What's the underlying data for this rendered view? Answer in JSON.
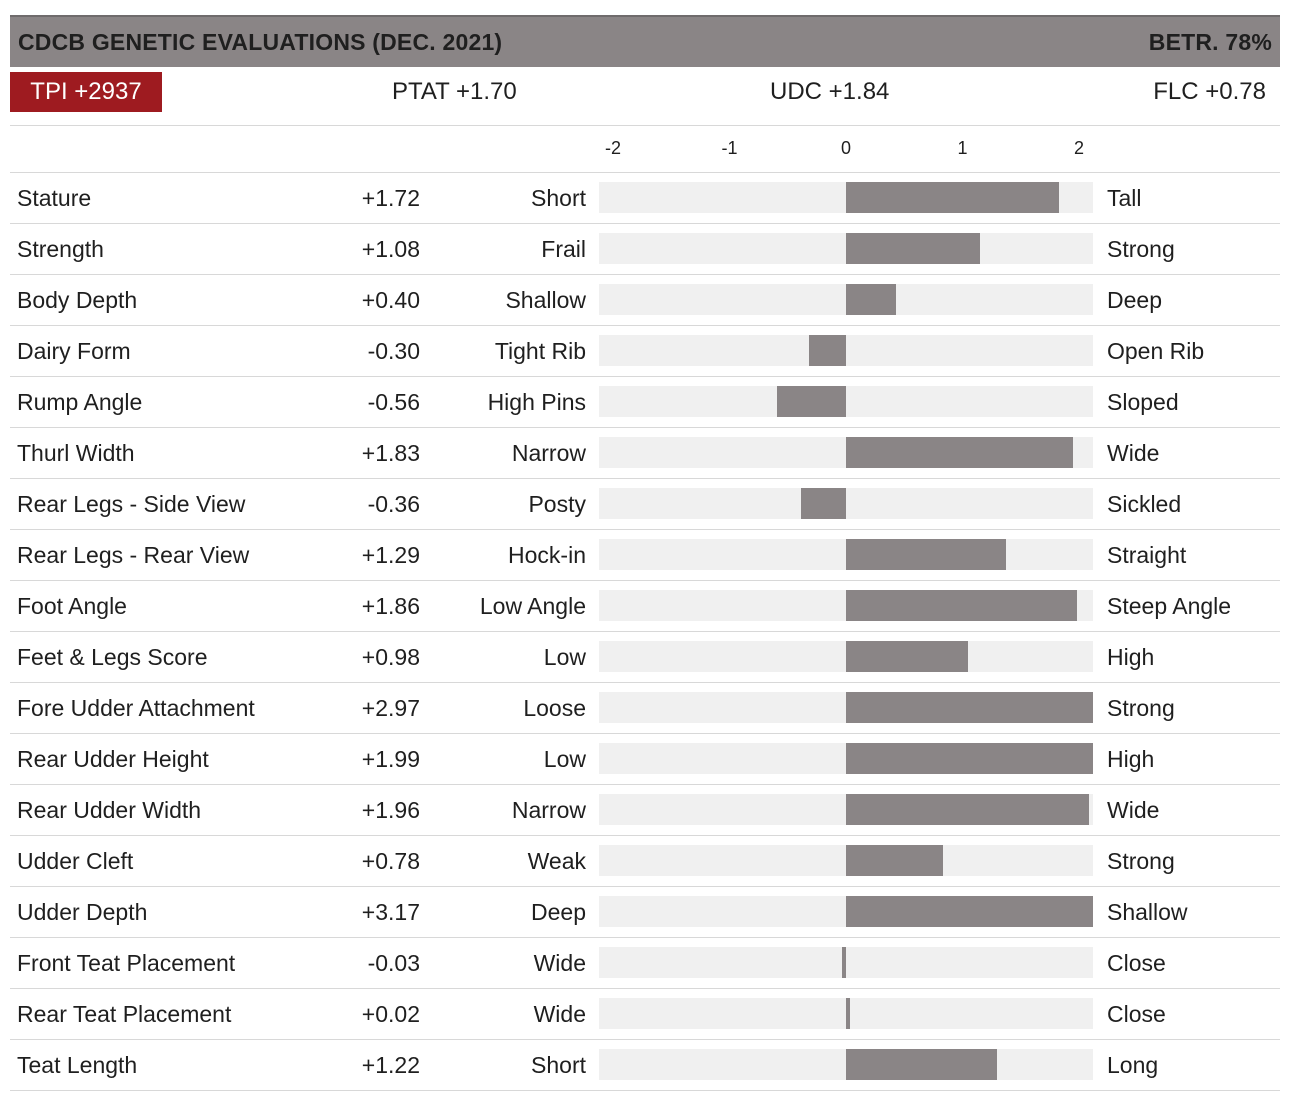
{
  "header": {
    "title": "CDCB GENETIC EVALUATIONS (DEC. 2021)",
    "reliability": "BETR. 78%"
  },
  "summary": {
    "tpi": "TPI +2937",
    "ptat": "PTAT +1.70",
    "udc": "UDC +1.84",
    "flc": "FLC +0.78"
  },
  "colors": {
    "bar": "#8a8586",
    "track": "#f0f0f0",
    "tpi_badge": "#9e1b20",
    "header_bg": "#8a8586"
  },
  "chart_data": {
    "type": "bar",
    "orientation": "horizontal",
    "xlim": [
      -2,
      2
    ],
    "ticks": [
      "-2",
      "-1",
      "0",
      "1",
      "2"
    ],
    "rows": [
      {
        "trait": "Stature",
        "value": 1.72,
        "label": "+1.72",
        "low": "Short",
        "high": "Tall"
      },
      {
        "trait": "Strength",
        "value": 1.08,
        "label": "+1.08",
        "low": "Frail",
        "high": "Strong"
      },
      {
        "trait": "Body Depth",
        "value": 0.4,
        "label": "+0.40",
        "low": "Shallow",
        "high": "Deep"
      },
      {
        "trait": "Dairy Form",
        "value": -0.3,
        "label": "-0.30",
        "low": "Tight Rib",
        "high": "Open Rib"
      },
      {
        "trait": "Rump Angle",
        "value": -0.56,
        "label": "-0.56",
        "low": "High Pins",
        "high": "Sloped"
      },
      {
        "trait": "Thurl Width",
        "value": 1.83,
        "label": "+1.83",
        "low": "Narrow",
        "high": "Wide"
      },
      {
        "trait": "Rear Legs - Side View",
        "value": -0.36,
        "label": "-0.36",
        "low": "Posty",
        "high": "Sickled"
      },
      {
        "trait": "Rear Legs - Rear View",
        "value": 1.29,
        "label": "+1.29",
        "low": "Hock-in",
        "high": "Straight"
      },
      {
        "trait": "Foot Angle",
        "value": 1.86,
        "label": "+1.86",
        "low": "Low Angle",
        "high": "Steep Angle"
      },
      {
        "trait": "Feet & Legs Score",
        "value": 0.98,
        "label": "+0.98",
        "low": "Low",
        "high": "High"
      },
      {
        "trait": "Fore Udder Attachment",
        "value": 2.97,
        "label": "+2.97",
        "low": "Loose",
        "high": "Strong"
      },
      {
        "trait": "Rear Udder Height",
        "value": 1.99,
        "label": "+1.99",
        "low": "Low",
        "high": "High"
      },
      {
        "trait": "Rear Udder Width",
        "value": 1.96,
        "label": "+1.96",
        "low": "Narrow",
        "high": "Wide"
      },
      {
        "trait": "Udder Cleft",
        "value": 0.78,
        "label": "+0.78",
        "low": "Weak",
        "high": "Strong"
      },
      {
        "trait": "Udder Depth",
        "value": 3.17,
        "label": "+3.17",
        "low": "Deep",
        "high": "Shallow"
      },
      {
        "trait": "Front Teat Placement",
        "value": -0.03,
        "label": "-0.03",
        "low": "Wide",
        "high": "Close"
      },
      {
        "trait": "Rear Teat Placement",
        "value": 0.02,
        "label": "+0.02",
        "low": "Wide",
        "high": "Close"
      },
      {
        "trait": "Teat Length",
        "value": 1.22,
        "label": "+1.22",
        "low": "Short",
        "high": "Long"
      }
    ]
  }
}
